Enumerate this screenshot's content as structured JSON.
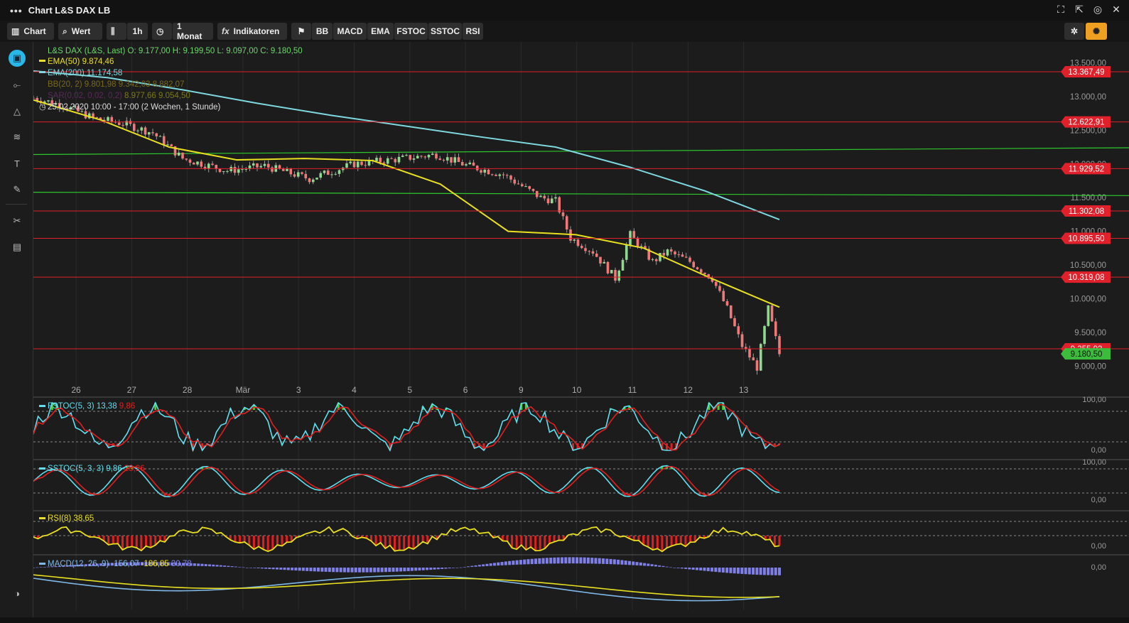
{
  "window": {
    "title": "Chart L&S DAX LB"
  },
  "toolbar": {
    "chart_label": "Chart",
    "wert_label": "Wert",
    "interval_label": "1h",
    "range_label": "1 Monat",
    "indicators_label": "Indikatoren",
    "indicator_chips": [
      "BB",
      "MACD",
      "EMA",
      "FSTOC",
      "SSTOC",
      "RSI"
    ]
  },
  "legend": {
    "instrument": "L&S DAX (L&S, Last)",
    "ohlc": "O: 9.177,00  H: 9.199,50  L: 9.097,00  C: 9.180,50",
    "ema50": {
      "label": "EMA(50)",
      "value": "9.874,46"
    },
    "ema200": {
      "label": "EMA(200)",
      "value": "11.174,58"
    },
    "bb": {
      "label": "BB(20, 2)",
      "values": "9.801,98  9.342,03  8.882,07"
    },
    "sar": {
      "label": "SAR(0,02, 0,02, 0,2)",
      "values": "8.977,66  9.054,50"
    },
    "timerange": "25.02.2020 10:00 - 17:00   (2 Wochen, 1 Stunde)"
  },
  "chart_data": {
    "type": "candlestick",
    "instrument": "L&S DAX",
    "x_labels": [
      "26",
      "27",
      "28",
      "Mär",
      "3",
      "4",
      "5",
      "6",
      "9",
      "10",
      "11",
      "12",
      "13"
    ],
    "y_ticks": [
      "13.500,00",
      "13.000,00",
      "12.500,00",
      "12.000,00",
      "11.500,00",
      "11.000,00",
      "10.500,00",
      "10.000,00",
      "9.500,00",
      "9.000,00"
    ],
    "ylim": [
      8750,
      13600
    ],
    "price_lines": [
      {
        "value": 13367.49,
        "label": "13.367,49"
      },
      {
        "value": 12622.91,
        "label": "12.622,91"
      },
      {
        "value": 11929.52,
        "label": "11.929,52"
      },
      {
        "value": 11302.08,
        "label": "11.302,08"
      },
      {
        "value": 10895.5,
        "label": "10.895,50"
      },
      {
        "value": 10319.08,
        "label": "10.319,08"
      },
      {
        "value": 9255.92,
        "label": "9.255,92"
      }
    ],
    "last_price": {
      "value": 9180.5,
      "label": "9.180,50"
    },
    "trend_lines": [
      {
        "from": [
          0,
          12140
        ],
        "to": [
          1,
          12240
        ]
      },
      {
        "from": [
          0,
          11580
        ],
        "to": [
          1,
          11530
        ]
      }
    ],
    "closes": [
      {
        "t": 0.0,
        "c": 12980
      },
      {
        "t": 0.04,
        "c": 12870
      },
      {
        "t": 0.08,
        "c": 12680
      },
      {
        "t": 0.12,
        "c": 12600
      },
      {
        "t": 0.16,
        "c": 12460
      },
      {
        "t": 0.2,
        "c": 12080
      },
      {
        "t": 0.26,
        "c": 11900
      },
      {
        "t": 0.31,
        "c": 11970
      },
      {
        "t": 0.37,
        "c": 11780
      },
      {
        "t": 0.43,
        "c": 12000
      },
      {
        "t": 0.48,
        "c": 12060
      },
      {
        "t": 0.54,
        "c": 12140
      },
      {
        "t": 0.58,
        "c": 11980
      },
      {
        "t": 0.63,
        "c": 11840
      },
      {
        "t": 0.68,
        "c": 11500
      },
      {
        "t": 0.7,
        "c": 11450
      },
      {
        "t": 0.72,
        "c": 10900
      },
      {
        "t": 0.75,
        "c": 10700
      },
      {
        "t": 0.78,
        "c": 10300
      },
      {
        "t": 0.8,
        "c": 10950
      },
      {
        "t": 0.83,
        "c": 10550
      },
      {
        "t": 0.85,
        "c": 10700
      },
      {
        "t": 0.88,
        "c": 10550
      },
      {
        "t": 0.91,
        "c": 10300
      },
      {
        "t": 0.93,
        "c": 9850
      },
      {
        "t": 0.95,
        "c": 9300
      },
      {
        "t": 0.97,
        "c": 8980
      },
      {
        "t": 0.985,
        "c": 9850
      },
      {
        "t": 1.0,
        "c": 9180
      }
    ],
    "series": [
      {
        "name": "EMA(50)",
        "color": "#e8e020",
        "values": [
          12950,
          12650,
          12250,
          12060,
          12080,
          12050,
          11700,
          11000,
          10950,
          10750,
          10300,
          9874
        ]
      },
      {
        "name": "EMA(200)",
        "color": "#7fd8e0",
        "values": [
          13380,
          13280,
          13100,
          12900,
          12720,
          12560,
          12400,
          12250,
          11950,
          11600,
          11174
        ]
      }
    ]
  },
  "panels": {
    "fstoc": {
      "label": "FSTOC(5, 3)",
      "v1": "13,38",
      "v2": "9,86",
      "y_max": "100,00",
      "y_min": "0,00"
    },
    "sstoc": {
      "label": "SSTOC(5, 3, 3)",
      "v1": "9,86",
      "v2": "23,26",
      "y_max": "100,00",
      "y_min": "0,00"
    },
    "rsi": {
      "label": "RSI(8)",
      "v1": "38,65",
      "y_min": "0,00"
    },
    "macd": {
      "label": "MACD(12, 26, 9)",
      "v1": "-156,07",
      "v2": "-186,85",
      "v3": "30,78",
      "y_zero": "0,00"
    }
  },
  "colors": {
    "up_candle": "#8fd88f",
    "down_candle": "#f07878",
    "price_line": "#e0202a",
    "trend_line": "#2dc82d",
    "ema50": "#e8e020",
    "ema200": "#7fd8e0",
    "fstoc_k": "#5fe0f0",
    "fstoc_d": "#e02020",
    "macd_hist": "#7f7fe8",
    "accent": "#29b6e8"
  }
}
